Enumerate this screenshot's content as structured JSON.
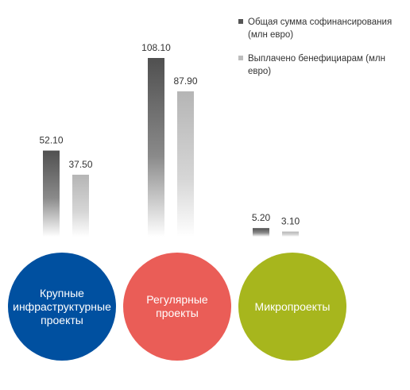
{
  "chart_data": {
    "type": "bar",
    "categories": [
      "Крупные инфраструктурные проекты",
      "Регулярные проекты",
      "Микропроекты"
    ],
    "series": [
      {
        "name": "Общая сумма софинансирования (млн евро)",
        "values": [
          52.1,
          108.1,
          5.2
        ],
        "labels": [
          "52.10",
          "108.10",
          "5.20"
        ],
        "color": "#555555"
      },
      {
        "name": "Выплачено бенефициарам (млн евро)",
        "values": [
          37.5,
          87.9,
          3.1
        ],
        "labels": [
          "37.50",
          "87.90",
          "3.10"
        ],
        "color": "#bdbdbd"
      }
    ],
    "ylim": [
      0,
      108.1
    ],
    "legend_position": "top-right"
  },
  "legend": [
    {
      "label": "Общая сумма софинансирования (млн евро)",
      "color": "#555555"
    },
    {
      "label": "Выплачено бенефициарам (млн евро)",
      "color": "#bdbdbd"
    }
  ],
  "circles": [
    {
      "label": "Крупные\nинфраструктурные\nпроекты",
      "color": "#0050a0"
    },
    {
      "label": "Регулярные\nпроекты",
      "color": "#ea5d57"
    },
    {
      "label": "Микропроекты",
      "color": "#a7b61d"
    }
  ]
}
